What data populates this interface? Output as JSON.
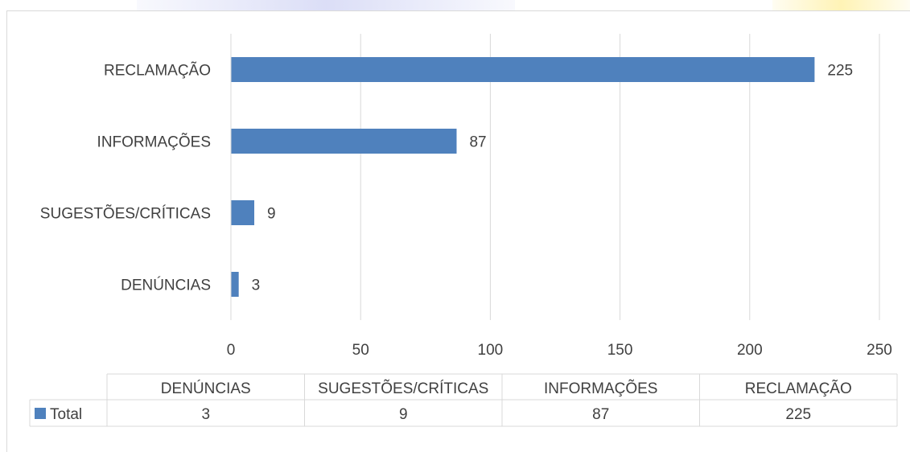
{
  "chart_data": {
    "type": "bar",
    "orientation": "horizontal",
    "categories": [
      "DENÚNCIAS",
      "SUGESTÕES/CRÍTICAS",
      "INFORMAÇÕES",
      "RECLAMAÇÃO"
    ],
    "series": [
      {
        "name": "Total",
        "values": [
          3,
          9,
          87,
          225
        ]
      }
    ],
    "xlim": [
      0,
      250
    ],
    "x_ticks": [
      "0",
      "50",
      "100",
      "150",
      "200",
      "250"
    ],
    "data_labels": true,
    "grid": true,
    "data_table": true,
    "bar_color": "#4f81bd",
    "grid_color": "#d9d9d9",
    "text_color": "#404040"
  }
}
